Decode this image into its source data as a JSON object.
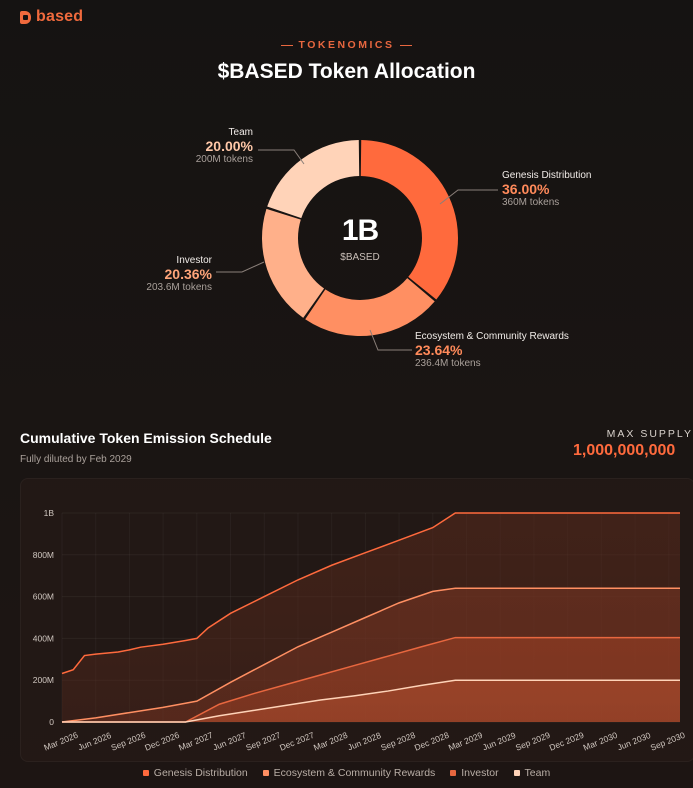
{
  "brand": {
    "name": "based",
    "icon": "based-logo-icon"
  },
  "header": {
    "eyebrow": "TOKENOMICS",
    "title": "$BASED Token Allocation"
  },
  "donut": {
    "center_value": "1B",
    "center_label": "$BASED",
    "slices": [
      {
        "name": "Genesis Distribution",
        "percent": "36.00%",
        "tokens": "360M tokens",
        "value": 36.0,
        "color": "#ff6a3d"
      },
      {
        "name": "Ecosystem & Community Rewards",
        "percent": "23.64%",
        "tokens": "236.4M tokens",
        "value": 23.64,
        "color": "#ff8f62"
      },
      {
        "name": "Investor",
        "percent": "20.36%",
        "tokens": "203.6M tokens",
        "value": 20.36,
        "color": "#ffb08a"
      },
      {
        "name": "Team",
        "percent": "20.00%",
        "tokens": "200M tokens",
        "value": 20.0,
        "color": "#ffd3b8"
      }
    ]
  },
  "schedule": {
    "title": "Cumulative Token Emission Schedule",
    "subtitle": "Fully diluted by Feb 2029",
    "max_supply_label": "MAX SUPPLY",
    "max_supply_value": "1,000,000,000"
  },
  "chart_data": {
    "type": "area",
    "stacked": true,
    "title": "Cumulative Token Emission Schedule",
    "y_ticks": [
      "0",
      "200M",
      "400M",
      "600M",
      "800M",
      "1B"
    ],
    "ylim": [
      0,
      1000
    ],
    "x_ticks": [
      "Mar 2026",
      "Jun 2026",
      "Sep 2026",
      "Dec 2026",
      "Mar 2027",
      "Jun 2027",
      "Sep 2027",
      "Dec 2027",
      "Mar 2028",
      "Jun 2028",
      "Sep 2028",
      "Dec 2028",
      "Mar 2029",
      "Jun 2029",
      "Sep 2029",
      "Dec 2029",
      "Mar 2030",
      "Jun 2030",
      "Sep 2030"
    ],
    "x_months": [
      0,
      3,
      6,
      9,
      12,
      15,
      18,
      21,
      24,
      27,
      30,
      33,
      36,
      39,
      42,
      45,
      48,
      51,
      54
    ],
    "xlim_months": [
      0,
      55
    ],
    "grid": true,
    "legend_position": "bottom",
    "series": [
      {
        "name": "Team",
        "color": "#ffd3b8",
        "points": [
          [
            0,
            0
          ],
          [
            11,
            0
          ],
          [
            14,
            30
          ],
          [
            17,
            55
          ],
          [
            20,
            80
          ],
          [
            23,
            105
          ],
          [
            26,
            125
          ],
          [
            29,
            148
          ],
          [
            32,
            175
          ],
          [
            35,
            200
          ],
          [
            55,
            200
          ]
        ]
      },
      {
        "name": "Investor",
        "color": "#e8673f",
        "points": [
          [
            0,
            0
          ],
          [
            11,
            0
          ],
          [
            14,
            85
          ],
          [
            17,
            135
          ],
          [
            20,
            180
          ],
          [
            23,
            225
          ],
          [
            26,
            270
          ],
          [
            29,
            315
          ],
          [
            32,
            360
          ],
          [
            35,
            404
          ],
          [
            55,
            404
          ]
        ]
      },
      {
        "name": "Ecosystem & Community Rewards",
        "color": "#ff8f62",
        "points": [
          [
            0,
            0
          ],
          [
            3,
            20
          ],
          [
            6,
            45
          ],
          [
            9,
            70
          ],
          [
            12,
            100
          ],
          [
            15,
            190
          ],
          [
            18,
            275
          ],
          [
            21,
            360
          ],
          [
            24,
            430
          ],
          [
            27,
            500
          ],
          [
            30,
            570
          ],
          [
            33,
            625
          ],
          [
            35,
            640
          ],
          [
            55,
            640
          ]
        ]
      },
      {
        "name": "Genesis Distribution",
        "color": "#ff6a3d",
        "points": [
          [
            0,
            232
          ],
          [
            1,
            250
          ],
          [
            2,
            318
          ],
          [
            3,
            325
          ],
          [
            5,
            335
          ],
          [
            6,
            345
          ],
          [
            7,
            358
          ],
          [
            9,
            372
          ],
          [
            11,
            390
          ],
          [
            12,
            400
          ],
          [
            13,
            450
          ],
          [
            15,
            520
          ],
          [
            18,
            600
          ],
          [
            21,
            680
          ],
          [
            24,
            750
          ],
          [
            27,
            810
          ],
          [
            30,
            870
          ],
          [
            33,
            930
          ],
          [
            35,
            1000
          ],
          [
            55,
            1000
          ]
        ]
      }
    ]
  },
  "legend": [
    {
      "label": "Genesis Distribution",
      "color": "#ff6a3d"
    },
    {
      "label": "Ecosystem & Community Rewards",
      "color": "#ff8f62"
    },
    {
      "label": "Investor",
      "color": "#e8673f"
    },
    {
      "label": "Team",
      "color": "#ffd3b8"
    }
  ]
}
